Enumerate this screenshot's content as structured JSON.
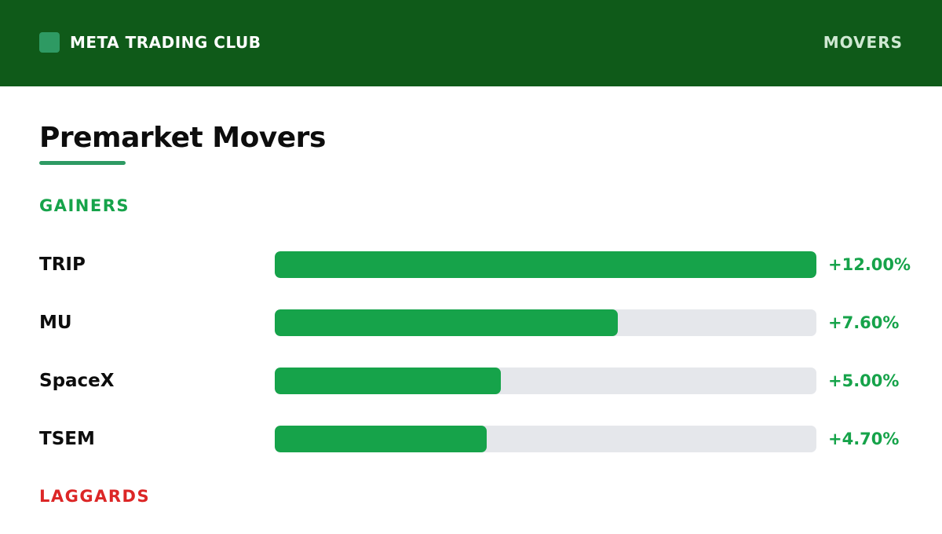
{
  "header": {
    "brand": "META TRADING CLUB",
    "nav_label": "MOVERS",
    "background_color": "#0f5a19",
    "brand_mark_color": "#2e9a63"
  },
  "page": {
    "title": "Premarket Movers"
  },
  "sections": {
    "gainers_label": "GAINERS",
    "laggards_label": "LAGGARDS"
  },
  "colors": {
    "gain": "#16a34a",
    "loss": "#dc2626",
    "track": "#e5e7eb",
    "accent": "#2e9a63"
  },
  "chart_data": {
    "type": "bar",
    "orientation": "horizontal",
    "title": "Premarket Movers",
    "section": "GAINERS",
    "categories": [
      "TRIP",
      "MU",
      "SpaceX",
      "TSEM"
    ],
    "values": [
      12.0,
      7.6,
      5.0,
      4.7
    ],
    "value_labels": [
      "+12.00%",
      "+7.60%",
      "+5.00%",
      "+4.70%"
    ],
    "unit": "%",
    "xlim": [
      0,
      12.0
    ],
    "grid": false,
    "legend": "none"
  }
}
